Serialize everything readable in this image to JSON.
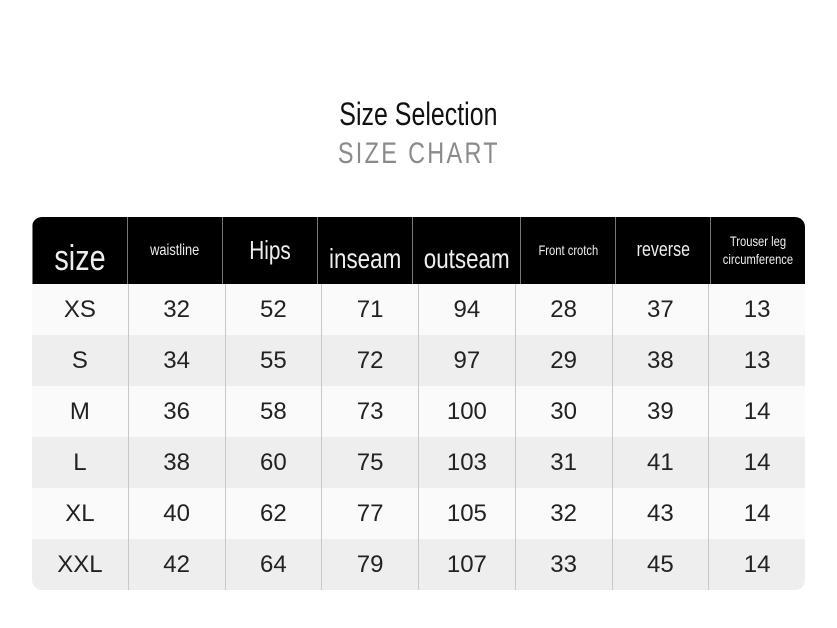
{
  "title": "Size Selection",
  "subtitle": "SIZE CHART",
  "headers": [
    "size",
    "waistline",
    "Hips",
    "inseam",
    "outseam",
    "Front crotch",
    "reverse",
    "Trouser leg circumference"
  ],
  "rows": [
    [
      "XS",
      "32",
      "52",
      "71",
      "94",
      "28",
      "37",
      "13"
    ],
    [
      "S",
      "34",
      "55",
      "72",
      "97",
      "29",
      "38",
      "13"
    ],
    [
      "M",
      "36",
      "58",
      "73",
      "100",
      "30",
      "39",
      "14"
    ],
    [
      "L",
      "38",
      "60",
      "75",
      "103",
      "31",
      "41",
      "14"
    ],
    [
      "XL",
      "40",
      "62",
      "77",
      "105",
      "32",
      "43",
      "14"
    ],
    [
      "XXL",
      "42",
      "64",
      "79",
      "107",
      "33",
      "45",
      "14"
    ]
  ]
}
